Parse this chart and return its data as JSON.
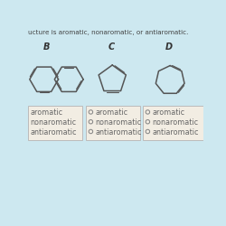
{
  "title_text": "ucture is aromatic, nonaromatic, or antiaromatic.",
  "background_color": "#cde8f0",
  "section_labels": [
    "B",
    "C",
    "D"
  ],
  "options": [
    "aromatic",
    "nonaromatic",
    "antiaromatic"
  ],
  "box_B_has_circles": false,
  "box_C_has_circles": true,
  "box_D_has_circles": true,
  "text_color": "#666666",
  "box_color": "#f2ede3",
  "box_edge_color": "#bbbbbb",
  "line_color": "#555555"
}
